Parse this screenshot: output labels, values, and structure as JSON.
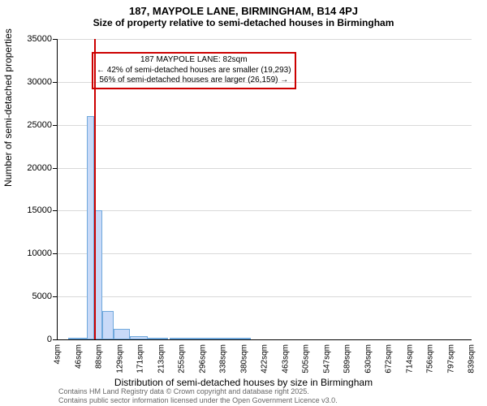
{
  "title_main": "187, MAYPOLE LANE, BIRMINGHAM, B14 4PJ",
  "title_sub": "Size of property relative to semi-detached houses in Birmingham",
  "ylabel": "Number of semi-detached properties",
  "xlabel": "Distribution of semi-detached houses by size in Birmingham",
  "footnote_line1": "Contains HM Land Registry data © Crown copyright and database right 2025.",
  "footnote_line2": "Contains public sector information licensed under the Open Government Licence v3.0.",
  "annotation": {
    "line1": "187 MAYPOLE LANE: 82sqm",
    "line2": "← 42% of semi-detached houses are smaller (19,293)",
    "line3": "56% of semi-detached houses are larger (26,159) →",
    "border_color": "#cc0000"
  },
  "chart": {
    "type": "histogram",
    "ylim": [
      0,
      35000
    ],
    "ytick_step": 5000,
    "xlim": [
      4,
      860
    ],
    "bar_fill": "#c9daf8",
    "bar_border": "#6fa8dc",
    "marker_color": "#cc0000",
    "marker_x": 82,
    "grid_color": "#d0d0d0",
    "background_color": "#ffffff",
    "xtick_labels": [
      "4sqm",
      "46sqm",
      "88sqm",
      "129sqm",
      "171sqm",
      "213sqm",
      "255sqm",
      "296sqm",
      "338sqm",
      "380sqm",
      "422sqm",
      "463sqm",
      "505sqm",
      "547sqm",
      "589sqm",
      "630sqm",
      "672sqm",
      "714sqm",
      "756sqm",
      "797sqm",
      "839sqm"
    ],
    "bars": [
      {
        "x_center": 46,
        "width": 40,
        "value": 100
      },
      {
        "x_center": 72,
        "width": 14,
        "value": 26000
      },
      {
        "x_center": 88,
        "width": 18,
        "value": 15000
      },
      {
        "x_center": 108,
        "width": 22,
        "value": 3300
      },
      {
        "x_center": 136,
        "width": 34,
        "value": 1200
      },
      {
        "x_center": 172,
        "width": 36,
        "value": 400
      },
      {
        "x_center": 212,
        "width": 42,
        "value": 200
      },
      {
        "x_center": 256,
        "width": 42,
        "value": 120
      },
      {
        "x_center": 298,
        "width": 42,
        "value": 80
      },
      {
        "x_center": 340,
        "width": 42,
        "value": 50
      },
      {
        "x_center": 382,
        "width": 42,
        "value": 30
      }
    ]
  }
}
